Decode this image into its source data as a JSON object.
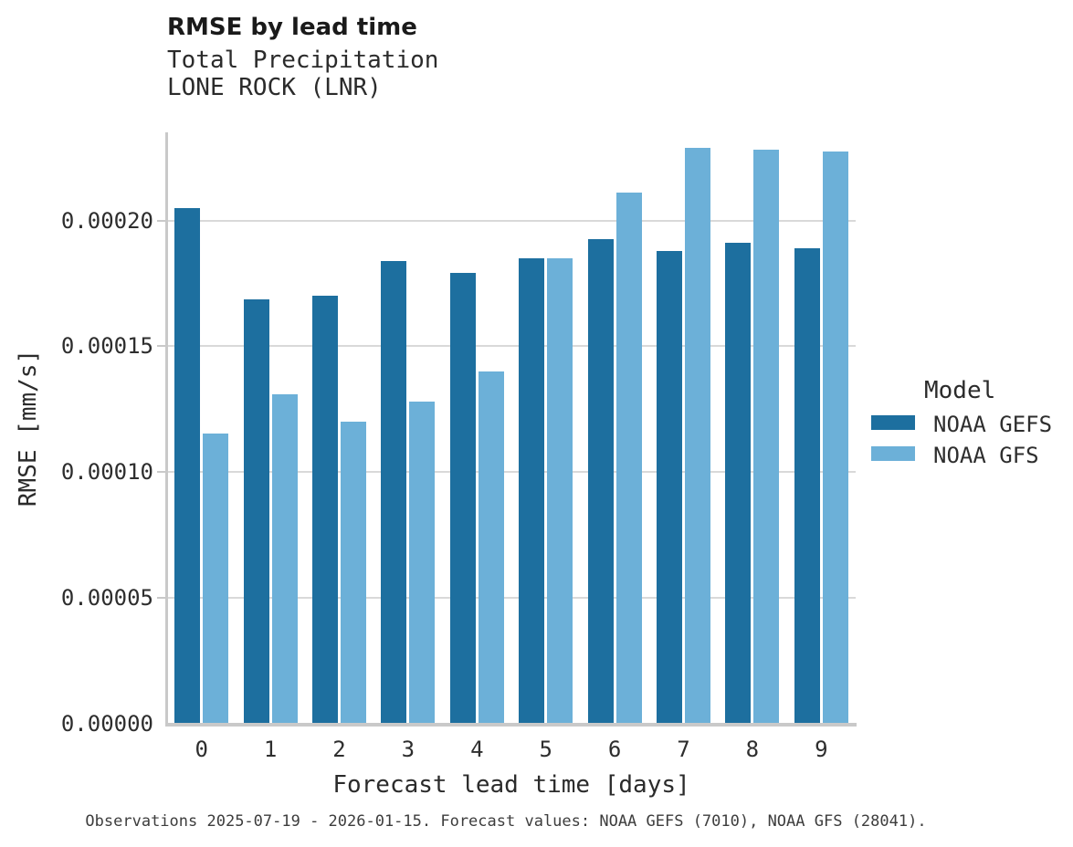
{
  "header": {
    "title": "RMSE by lead time",
    "subtitle_line1": "Total Precipitation",
    "subtitle_line2": "LONE ROCK (LNR)"
  },
  "chart_data": {
    "type": "bar",
    "title": "RMSE by lead time",
    "subtitle": [
      "Total Precipitation",
      "LONE ROCK (LNR)"
    ],
    "categories": [
      "0",
      "1",
      "2",
      "3",
      "4",
      "5",
      "6",
      "7",
      "8",
      "9"
    ],
    "series": [
      {
        "name": "NOAA GEFS",
        "color": "#1d6f9f",
        "values": [
          0.000205,
          0.0001685,
          0.00017,
          0.000184,
          0.000179,
          0.000185,
          0.0001925,
          0.000188,
          0.000191,
          0.000189
        ]
      },
      {
        "name": "NOAA GFS",
        "color": "#6cb0d8",
        "values": [
          0.0001155,
          0.000131,
          0.00012,
          0.000128,
          0.00014,
          0.000185,
          0.000211,
          0.000229,
          0.000228,
          0.0002275
        ]
      }
    ],
    "xlabel": "Forecast lead time [days]",
    "ylabel": "RMSE [mm/s]",
    "ylim": [
      0,
      0.000235
    ],
    "yticks": [
      0.0,
      5e-05,
      0.0001,
      0.00015,
      0.0002
    ],
    "ytick_labels": [
      "0.00000",
      "0.00005",
      "0.00010",
      "0.00015",
      "0.00020"
    ],
    "grid": true,
    "legend_title": "Model",
    "legend_position": "right"
  },
  "legend": {
    "title": "Model",
    "items": [
      {
        "label": "NOAA GEFS",
        "color": "#1d6f9f"
      },
      {
        "label": "NOAA GFS",
        "color": "#6cb0d8"
      }
    ]
  },
  "caption": "Observations 2025-07-19 - 2026-01-15. Forecast values: NOAA GEFS (7010), NOAA GFS (28041).",
  "colors": {
    "series_dark": "#1d6f9f",
    "series_light": "#6cb0d8",
    "gridline": "#d9d9d9",
    "spine": "#c9c9c9",
    "title_text": "#1a1a1a",
    "body_text": "#2b2b2b",
    "caption_text": "#3d3d3d"
  }
}
